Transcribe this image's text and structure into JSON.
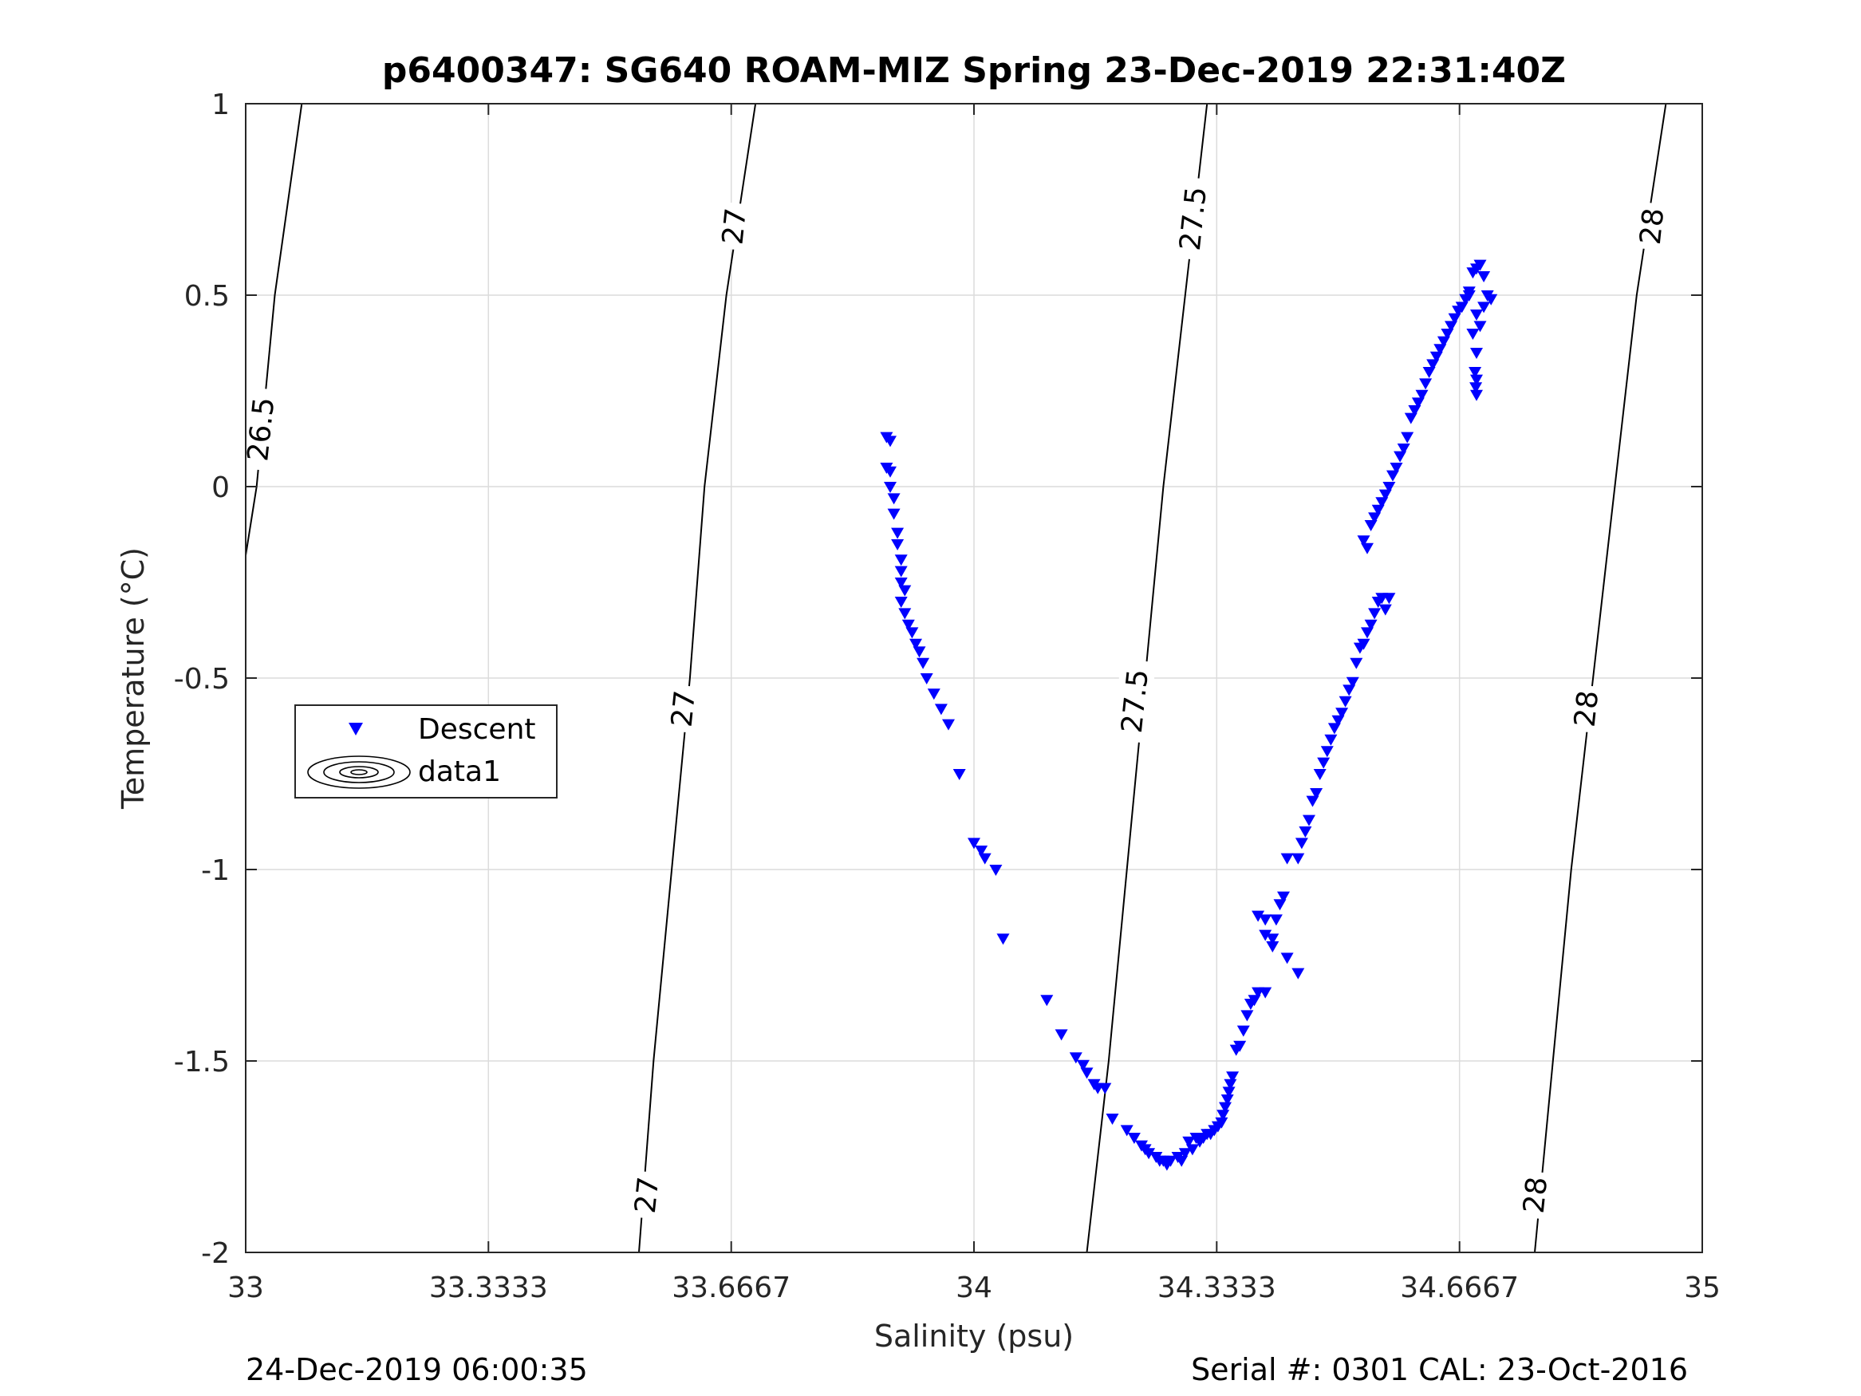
{
  "chart_data": {
    "type": "scatter",
    "title": "p6400347: SG640 ROAM-MIZ Spring 23-Dec-2019 22:31:40Z",
    "xlabel": "Salinity (psu)",
    "ylabel": "Temperature (°C)",
    "xlim": [
      33,
      35
    ],
    "ylim": [
      -2,
      1
    ],
    "x_tick_labels": [
      "33",
      "33.3333",
      "33.6667",
      "34",
      "34.3333",
      "34.6667",
      "35"
    ],
    "x_tick_values": [
      33,
      33.3333,
      33.6667,
      34,
      34.3333,
      34.6667,
      35
    ],
    "y_tick_labels": [
      "-2",
      "-1.5",
      "-1",
      "-0.5",
      "0",
      "0.5",
      "1"
    ],
    "y_tick_values": [
      -2,
      -1.5,
      -1,
      -0.5,
      0,
      0.5,
      1
    ],
    "grid": true,
    "legend": {
      "placement": "middle-left",
      "entries": [
        {
          "label": "Descent",
          "marker": "triangle-down",
          "color": "#0000ff"
        },
        {
          "label": "data1",
          "marker": "contour",
          "color": "#000000"
        }
      ]
    },
    "series": [
      {
        "name": "Descent",
        "marker": "triangle-down",
        "color": "#0000ff",
        "points": [
          [
            33.88,
            0.13
          ],
          [
            33.885,
            0.12
          ],
          [
            33.88,
            0.05
          ],
          [
            33.885,
            0.04
          ],
          [
            33.885,
            0.0
          ],
          [
            33.89,
            -0.03
          ],
          [
            33.89,
            -0.07
          ],
          [
            33.895,
            -0.12
          ],
          [
            33.895,
            -0.15
          ],
          [
            33.9,
            -0.19
          ],
          [
            33.9,
            -0.22
          ],
          [
            33.9,
            -0.25
          ],
          [
            33.905,
            -0.27
          ],
          [
            33.9,
            -0.3
          ],
          [
            33.905,
            -0.33
          ],
          [
            33.91,
            -0.36
          ],
          [
            33.915,
            -0.38
          ],
          [
            33.92,
            -0.41
          ],
          [
            33.925,
            -0.43
          ],
          [
            33.93,
            -0.46
          ],
          [
            33.935,
            -0.5
          ],
          [
            33.945,
            -0.54
          ],
          [
            33.955,
            -0.58
          ],
          [
            33.965,
            -0.62
          ],
          [
            33.98,
            -0.75
          ],
          [
            34.0,
            -0.93
          ],
          [
            34.01,
            -0.95
          ],
          [
            34.015,
            -0.97
          ],
          [
            34.03,
            -1.0
          ],
          [
            34.04,
            -1.18
          ],
          [
            34.1,
            -1.34
          ],
          [
            34.12,
            -1.43
          ],
          [
            34.14,
            -1.49
          ],
          [
            34.15,
            -1.51
          ],
          [
            34.155,
            -1.53
          ],
          [
            34.165,
            -1.56
          ],
          [
            34.17,
            -1.57
          ],
          [
            34.18,
            -1.57
          ],
          [
            34.19,
            -1.65
          ],
          [
            34.21,
            -1.68
          ],
          [
            34.22,
            -1.7
          ],
          [
            34.23,
            -1.72
          ],
          [
            34.235,
            -1.73
          ],
          [
            34.24,
            -1.74
          ],
          [
            34.25,
            -1.75
          ],
          [
            34.255,
            -1.76
          ],
          [
            34.26,
            -1.76
          ],
          [
            34.265,
            -1.77
          ],
          [
            34.27,
            -1.76
          ],
          [
            34.28,
            -1.75
          ],
          [
            34.285,
            -1.76
          ],
          [
            34.29,
            -1.74
          ],
          [
            34.295,
            -1.71
          ],
          [
            34.3,
            -1.73
          ],
          [
            34.305,
            -1.7
          ],
          [
            34.31,
            -1.71
          ],
          [
            34.315,
            -1.7
          ],
          [
            34.32,
            -1.69
          ],
          [
            34.325,
            -1.69
          ],
          [
            34.33,
            -1.68
          ],
          [
            34.335,
            -1.67
          ],
          [
            34.34,
            -1.66
          ],
          [
            34.342,
            -1.64
          ],
          [
            34.345,
            -1.62
          ],
          [
            34.348,
            -1.6
          ],
          [
            34.35,
            -1.58
          ],
          [
            34.352,
            -1.56
          ],
          [
            34.355,
            -1.54
          ],
          [
            34.36,
            -1.47
          ],
          [
            34.365,
            -1.46
          ],
          [
            34.37,
            -1.42
          ],
          [
            34.375,
            -1.38
          ],
          [
            34.38,
            -1.35
          ],
          [
            34.385,
            -1.34
          ],
          [
            34.39,
            -1.32
          ],
          [
            34.4,
            -1.32
          ],
          [
            34.39,
            -1.12
          ],
          [
            34.4,
            -1.13
          ],
          [
            34.4,
            -1.17
          ],
          [
            34.41,
            -1.18
          ],
          [
            34.41,
            -1.2
          ],
          [
            34.415,
            -1.13
          ],
          [
            34.42,
            -1.09
          ],
          [
            34.425,
            -1.07
          ],
          [
            34.43,
            -1.23
          ],
          [
            34.445,
            -1.27
          ],
          [
            34.445,
            -0.97
          ],
          [
            34.43,
            -0.97
          ],
          [
            34.45,
            -0.93
          ],
          [
            34.455,
            -0.9
          ],
          [
            34.46,
            -0.87
          ],
          [
            34.465,
            -0.82
          ],
          [
            34.47,
            -0.8
          ],
          [
            34.475,
            -0.75
          ],
          [
            34.48,
            -0.72
          ],
          [
            34.485,
            -0.69
          ],
          [
            34.49,
            -0.66
          ],
          [
            34.495,
            -0.63
          ],
          [
            34.5,
            -0.61
          ],
          [
            34.505,
            -0.59
          ],
          [
            34.51,
            -0.56
          ],
          [
            34.515,
            -0.53
          ],
          [
            34.52,
            -0.51
          ],
          [
            34.525,
            -0.46
          ],
          [
            34.53,
            -0.42
          ],
          [
            34.535,
            -0.41
          ],
          [
            34.54,
            -0.38
          ],
          [
            34.545,
            -0.36
          ],
          [
            34.55,
            -0.33
          ],
          [
            34.555,
            -0.3
          ],
          [
            34.56,
            -0.29
          ],
          [
            34.565,
            -0.32
          ],
          [
            34.57,
            -0.29
          ],
          [
            34.535,
            -0.14
          ],
          [
            34.54,
            -0.16
          ],
          [
            34.545,
            -0.1
          ],
          [
            34.55,
            -0.08
          ],
          [
            34.555,
            -0.06
          ],
          [
            34.56,
            -0.04
          ],
          [
            34.565,
            -0.02
          ],
          [
            34.57,
            0.0
          ],
          [
            34.575,
            0.03
          ],
          [
            34.58,
            0.05
          ],
          [
            34.585,
            0.08
          ],
          [
            34.59,
            0.1
          ],
          [
            34.595,
            0.13
          ],
          [
            34.6,
            0.18
          ],
          [
            34.605,
            0.2
          ],
          [
            34.61,
            0.22
          ],
          [
            34.615,
            0.24
          ],
          [
            34.62,
            0.27
          ],
          [
            34.625,
            0.3
          ],
          [
            34.63,
            0.32
          ],
          [
            34.635,
            0.34
          ],
          [
            34.64,
            0.36
          ],
          [
            34.645,
            0.38
          ],
          [
            34.65,
            0.4
          ],
          [
            34.655,
            0.42
          ],
          [
            34.66,
            0.44
          ],
          [
            34.665,
            0.46
          ],
          [
            34.67,
            0.47
          ],
          [
            34.675,
            0.49
          ],
          [
            34.68,
            0.51
          ],
          [
            34.685,
            0.56
          ],
          [
            34.69,
            0.57
          ],
          [
            34.695,
            0.58
          ],
          [
            34.7,
            0.55
          ],
          [
            34.68,
            0.5
          ],
          [
            34.69,
            0.45
          ],
          [
            34.685,
            0.4
          ],
          [
            34.69,
            0.35
          ],
          [
            34.688,
            0.3
          ],
          [
            34.69,
            0.28
          ],
          [
            34.689,
            0.26
          ],
          [
            34.69,
            0.24
          ],
          [
            34.695,
            0.42
          ],
          [
            34.7,
            0.47
          ],
          [
            34.705,
            0.5
          ],
          [
            34.71,
            0.49
          ]
        ]
      }
    ],
    "contours": [
      {
        "label": "26.5",
        "color": "#000000",
        "line": [
          [
            33.0,
            -0.18
          ],
          [
            33.015,
            0.0
          ],
          [
            33.04,
            0.5
          ],
          [
            33.077,
            1.0
          ]
        ]
      },
      {
        "label": "27",
        "color": "#000000",
        "line": [
          [
            33.54,
            -2.0
          ],
          [
            33.56,
            -1.5
          ],
          [
            33.585,
            -1.0
          ],
          [
            33.61,
            -0.5
          ],
          [
            33.63,
            0.0
          ],
          [
            33.66,
            0.5
          ],
          [
            33.7,
            1.0
          ]
        ]
      },
      {
        "label": "27.5",
        "color": "#000000",
        "line": [
          [
            34.155,
            -2.0
          ],
          [
            34.185,
            -1.5
          ],
          [
            34.21,
            -1.0
          ],
          [
            34.235,
            -0.5
          ],
          [
            34.26,
            0.0
          ],
          [
            34.29,
            0.5
          ],
          [
            34.32,
            1.0
          ]
        ]
      },
      {
        "label": "28",
        "color": "#000000",
        "line": [
          [
            34.77,
            -2.0
          ],
          [
            34.795,
            -1.5
          ],
          [
            34.82,
            -1.0
          ],
          [
            34.85,
            -0.5
          ],
          [
            34.88,
            0.0
          ],
          [
            34.91,
            0.5
          ],
          [
            34.95,
            1.0
          ]
        ]
      }
    ],
    "contour_labels": [
      {
        "text": "26.5",
        "x": 33.02,
        "y": 0.15
      },
      {
        "text": "27",
        "x": 33.67,
        "y": 0.68
      },
      {
        "text": "27",
        "x": 33.6,
        "y": -0.58
      },
      {
        "text": "27",
        "x": 33.55,
        "y": -1.85
      },
      {
        "text": "27.5",
        "x": 34.3,
        "y": 0.7
      },
      {
        "text": "27.5",
        "x": 34.22,
        "y": -0.56
      },
      {
        "text": "28",
        "x": 34.93,
        "y": 0.68
      },
      {
        "text": "28",
        "x": 34.84,
        "y": -0.58
      },
      {
        "text": "28",
        "x": 34.77,
        "y": -1.85
      }
    ]
  },
  "footer": {
    "left": "24-Dec-2019 06:00:35",
    "right": "Serial #: 0301  CAL: 23-Oct-2016"
  }
}
